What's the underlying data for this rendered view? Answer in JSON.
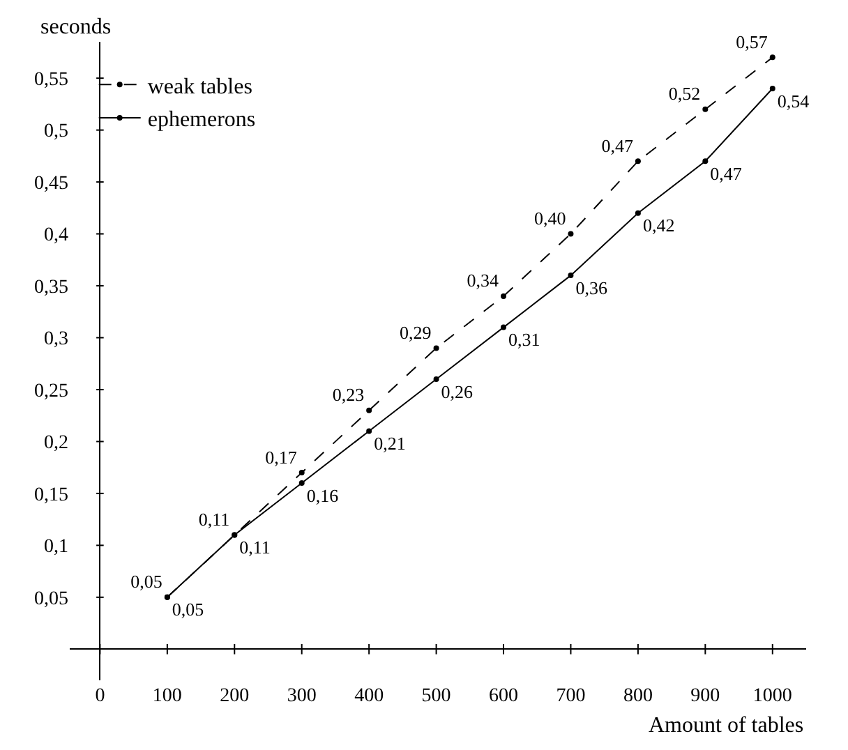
{
  "chart_data": {
    "type": "line",
    "xlabel": "Amount of tables",
    "ylabel": "seconds",
    "x": [
      100,
      200,
      300,
      400,
      500,
      600,
      700,
      800,
      900,
      1000
    ],
    "series": [
      {
        "name": "weak tables",
        "color": "#000000",
        "line_style": "dashed",
        "values": [
          0.05,
          0.11,
          0.17,
          0.23,
          0.29,
          0.34,
          0.4,
          0.47,
          0.52,
          0.57
        ],
        "value_labels": [
          "0,05",
          "0,11",
          "0,17",
          "0,23",
          "0,29",
          "0,34",
          "0,40",
          "0,47",
          "0,52",
          "0,57"
        ]
      },
      {
        "name": "ephemerons",
        "color": "#000000",
        "line_style": "solid",
        "values": [
          0.05,
          0.11,
          0.16,
          0.21,
          0.26,
          0.31,
          0.36,
          0.42,
          0.47,
          0.54
        ],
        "value_labels": [
          "0,05",
          "0,11",
          "0,16",
          "0,21",
          "0,26",
          "0,31",
          "0,36",
          "0,42",
          "0,47",
          "0,54"
        ]
      }
    ],
    "xlim": [
      -45,
      1050
    ],
    "ylim": [
      -0.03,
      0.585
    ],
    "xticks": [
      0,
      100,
      200,
      300,
      400,
      500,
      600,
      700,
      800,
      900,
      1000
    ],
    "yticks": [
      {
        "value": 0.05,
        "label": "0,05"
      },
      {
        "value": 0.1,
        "label": "0,1"
      },
      {
        "value": 0.15,
        "label": "0,15"
      },
      {
        "value": 0.2,
        "label": "0,2"
      },
      {
        "value": 0.25,
        "label": "0,25"
      },
      {
        "value": 0.3,
        "label": "0,3"
      },
      {
        "value": 0.35,
        "label": "0,35"
      },
      {
        "value": 0.4,
        "label": "0,4"
      },
      {
        "value": 0.45,
        "label": "0,45"
      },
      {
        "value": 0.5,
        "label": "0,5"
      },
      {
        "value": 0.55,
        "label": "0,55"
      }
    ],
    "marker": "circle",
    "legend": "top left"
  }
}
